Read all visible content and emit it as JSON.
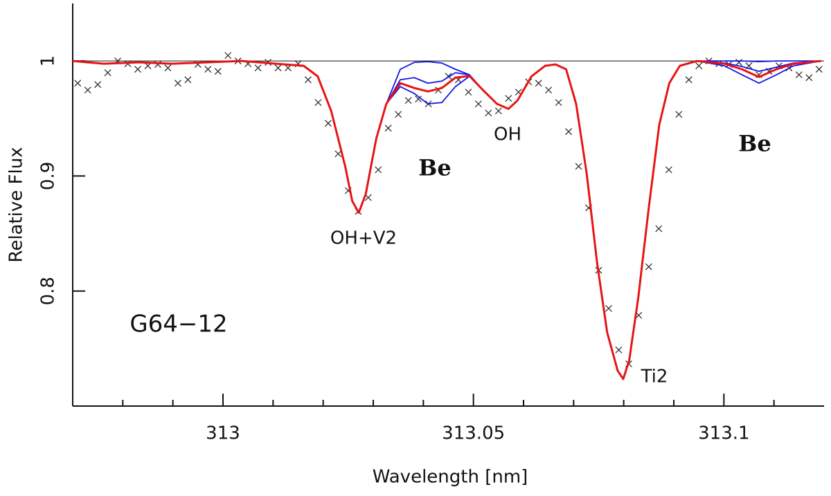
{
  "chart_data": {
    "type": "line",
    "xlabel": "Wavelength [nm]",
    "ylabel": "Relative Flux",
    "xlim": [
      312.97,
      313.12
    ],
    "ylim": [
      0.7,
      1.05
    ],
    "xticks": [
      313,
      313.05,
      313.1
    ],
    "xminorticks": [
      312.98,
      312.99,
      313.01,
      313.02,
      313.03,
      313.04,
      313.06,
      313.07,
      313.08,
      313.09,
      313.11
    ],
    "yticks": [
      0.8,
      0.9,
      1
    ],
    "hline": 1,
    "annotations": [
      "OH+V2",
      "Be",
      "OH",
      "Ti2",
      "Be",
      "G64−12"
    ],
    "series": [
      {
        "type": "scatter",
        "marker": "x",
        "color": "#333333",
        "x": [
          312.971,
          312.973,
          312.975,
          312.977,
          312.979,
          312.981,
          312.983,
          312.985,
          312.987,
          312.989,
          312.991,
          312.993,
          312.995,
          312.997,
          312.999,
          313.001,
          313.003,
          313.005,
          313.007,
          313.009,
          313.011,
          313.013,
          313.015,
          313.017,
          313.019,
          313.021,
          313.023,
          313.025,
          313.027,
          313.029,
          313.031,
          313.033,
          313.035,
          313.037,
          313.039,
          313.041,
          313.043,
          313.045,
          313.047,
          313.049,
          313.051,
          313.053,
          313.055,
          313.057,
          313.059,
          313.061,
          313.063,
          313.065,
          313.067,
          313.069,
          313.071,
          313.073,
          313.075,
          313.077,
          313.079,
          313.081,
          313.083,
          313.085,
          313.087,
          313.089,
          313.091,
          313.093,
          313.095,
          313.097,
          313.099,
          313.101,
          313.103,
          313.105,
          313.107,
          313.109,
          313.111,
          313.113,
          313.115,
          313.117,
          313.119
        ],
        "values": [
          0.9807,
          0.9747,
          0.9795,
          0.9898,
          1,
          0.9976,
          0.9928,
          0.9958,
          0.997,
          0.994,
          0.9807,
          0.9837,
          0.997,
          0.9928,
          0.991,
          1.0048,
          1,
          0.9976,
          0.994,
          0.9988,
          0.994,
          0.994,
          0.9976,
          0.9837,
          0.9639,
          0.9458,
          0.9193,
          0.8873,
          0.8693,
          0.8813,
          0.9054,
          0.9416,
          0.9536,
          0.9657,
          0.9669,
          0.9627,
          0.9747,
          0.9867,
          0.9837,
          0.9729,
          0.9627,
          0.9548,
          0.9566,
          0.9675,
          0.9729,
          0.9819,
          0.9807,
          0.9747,
          0.9639,
          0.9386,
          0.9084,
          0.8723,
          0.8181,
          0.7849,
          0.7488,
          0.7367,
          0.7789,
          0.8211,
          0.8542,
          0.9054,
          0.9536,
          0.9837,
          0.9958,
          1,
          0.9976,
          0.997,
          0.9988,
          0.9958,
          0.988,
          0.991,
          0.9958,
          0.994,
          0.988,
          0.9855,
          0.9928
        ]
      },
      {
        "type": "line",
        "color": "#1414e6",
        "x": [
          313.0326,
          313.0354,
          313.0382,
          313.0409,
          313.0437,
          313.0464,
          313.0492,
          313.0519,
          313.07,
          313.0946,
          313.1001,
          313.1036,
          313.107,
          313.1105,
          313.1139,
          313.1194
        ],
        "values": [
          0.9627,
          0.9928,
          0.9988,
          0.9994,
          0.9982,
          0.9928,
          0.988,
          0.9747,
          null,
          1,
          1,
          1,
          0.9994,
          1,
          1,
          1
        ]
      },
      {
        "type": "line",
        "color": "#1414e6",
        "x": [
          313.0326,
          313.0354,
          313.0382,
          313.0409,
          313.0437,
          313.0464,
          313.0492,
          313.0519,
          313.07,
          313.0946,
          313.1001,
          313.1036,
          313.107,
          313.1105,
          313.1139,
          313.1194
        ],
        "values": [
          0.9627,
          0.9837,
          0.9855,
          0.9807,
          0.9825,
          0.9898,
          0.988,
          0.9747,
          null,
          1,
          0.9982,
          0.9952,
          0.991,
          0.9946,
          0.9982,
          1
        ]
      },
      {
        "type": "line",
        "color": "#1414e6",
        "x": [
          313.0326,
          313.0354,
          313.0382,
          313.0409,
          313.0437,
          313.0464,
          313.0492,
          313.0519,
          313.07,
          313.0946,
          313.1001,
          313.1036,
          313.107,
          313.1105,
          313.1139,
          313.1194
        ],
        "values": [
          0.9627,
          0.9777,
          0.9717,
          0.9627,
          0.9639,
          0.9777,
          0.9867,
          0.9747,
          null,
          1,
          0.9958,
          0.988,
          0.9807,
          0.988,
          0.9958,
          1
        ]
      },
      {
        "type": "line",
        "color": "#e61414",
        "width": 3,
        "x": [
          312.97,
          312.9762,
          312.9831,
          312.9899,
          312.9968,
          313.0037,
          313.0106,
          313.0161,
          313.0189,
          313.0216,
          313.0244,
          313.0258,
          313.0271,
          313.0285,
          313.0306,
          313.0326,
          313.0354,
          313.0382,
          313.0409,
          313.0437,
          313.0464,
          313.0492,
          313.0519,
          313.0547,
          313.057,
          313.0588,
          313.0616,
          313.0643,
          313.0664,
          313.0685,
          313.0705,
          313.0726,
          313.0747,
          313.0767,
          313.0788,
          313.0799,
          313.0811,
          313.0829,
          313.085,
          313.0871,
          313.0891,
          313.0912,
          313.0946,
          313.1001,
          313.1036,
          313.107,
          313.1105,
          313.1139,
          313.1194
        ],
        "values": [
          1,
          0.9976,
          0.9988,
          0.9976,
          0.9988,
          1,
          0.9976,
          0.9958,
          0.9867,
          0.9566,
          0.9084,
          0.8783,
          0.8681,
          0.8843,
          0.9325,
          0.9627,
          0.9807,
          0.9765,
          0.9735,
          0.9765,
          0.9855,
          0.987,
          0.9747,
          0.9627,
          0.9584,
          0.9657,
          0.9867,
          0.9958,
          0.997,
          0.9928,
          0.9627,
          0.9024,
          0.8241,
          0.7639,
          0.7307,
          0.7235,
          0.7398,
          0.794,
          0.8723,
          0.9446,
          0.9807,
          0.9958,
          1,
          0.9976,
          0.9928,
          0.9861,
          0.9928,
          0.9976,
          1
        ]
      }
    ]
  }
}
